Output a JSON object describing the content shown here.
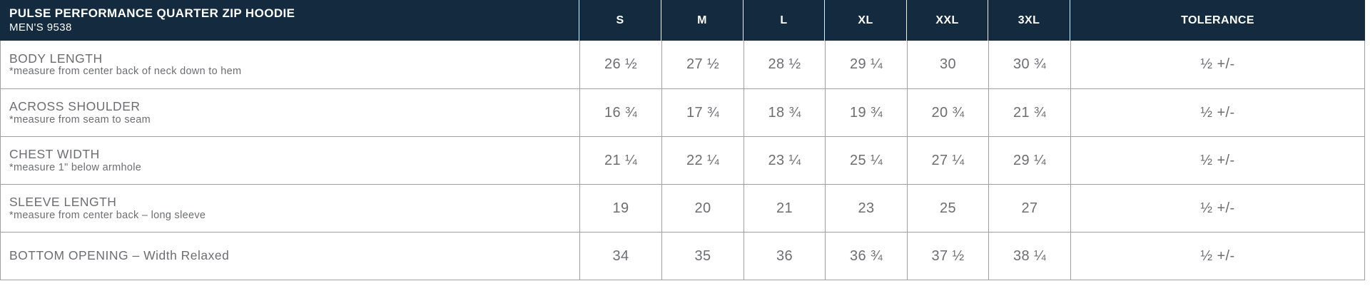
{
  "table": {
    "title": "PULSE PERFORMANCE QUARTER ZIP HOODIE",
    "subtitle": "MEN'S 9538",
    "size_columns": [
      "S",
      "M",
      "L",
      "XL",
      "XXL",
      "3XL"
    ],
    "tolerance_header": "TOLERANCE",
    "rows": [
      {
        "label": "BODY LENGTH",
        "note": "*measure from center back of neck down to hem",
        "values": [
          "26 ½",
          "27 ½",
          "28 ½",
          "29 ¼",
          "30",
          "30 ¾"
        ],
        "tolerance": "½ +/-"
      },
      {
        "label": "ACROSS SHOULDER",
        "note": "*measure from seam to seam",
        "values": [
          "16 ¾",
          "17 ¾",
          "18 ¾",
          "19 ¾",
          "20 ¾",
          "21 ¾"
        ],
        "tolerance": "½ +/-"
      },
      {
        "label": "CHEST WIDTH",
        "note": "*measure 1\" below armhole",
        "values": [
          "21 ¼",
          "22 ¼",
          "23 ¼",
          "25 ¼",
          "27 ¼",
          "29 ¼"
        ],
        "tolerance": "½ +/-"
      },
      {
        "label": "SLEEVE LENGTH",
        "note": "*measure from center back – long sleeve",
        "values": [
          "19",
          "20",
          "21",
          "23",
          "25",
          "27"
        ],
        "tolerance": "½ +/-"
      },
      {
        "label": "BOTTOM OPENING – Width Relaxed",
        "note": "",
        "values": [
          "34",
          "35",
          "36",
          "36 ¾",
          "37 ½",
          "38 ¼"
        ],
        "tolerance": "½ +/-"
      }
    ],
    "colors": {
      "header_bg": "#132A3F",
      "header_text": "#FFFFFF",
      "body_text": "#6D6E71",
      "grid_line": "#9EA0A3",
      "row_bg": "#FFFFFF"
    }
  },
  "chart_data": {
    "type": "table",
    "title": "PULSE PERFORMANCE QUARTER ZIP HOODIE – MEN'S 9538",
    "columns": [
      "S",
      "M",
      "L",
      "XL",
      "XXL",
      "3XL",
      "TOLERANCE"
    ],
    "row_labels": [
      "BODY LENGTH",
      "ACROSS SHOULDER",
      "CHEST WIDTH",
      "SLEEVE LENGTH",
      "BOTTOM OPENING – Width Relaxed"
    ],
    "values": [
      [
        26.5,
        27.5,
        28.5,
        29.25,
        30,
        30.75
      ],
      [
        16.75,
        17.75,
        18.75,
        19.75,
        20.75,
        21.75
      ],
      [
        21.25,
        22.25,
        23.25,
        25.25,
        27.25,
        29.25
      ],
      [
        19,
        20,
        21,
        23,
        25,
        27
      ],
      [
        34,
        35,
        36,
        36.75,
        37.5,
        38.25
      ]
    ],
    "tolerance": "½ +/-"
  }
}
